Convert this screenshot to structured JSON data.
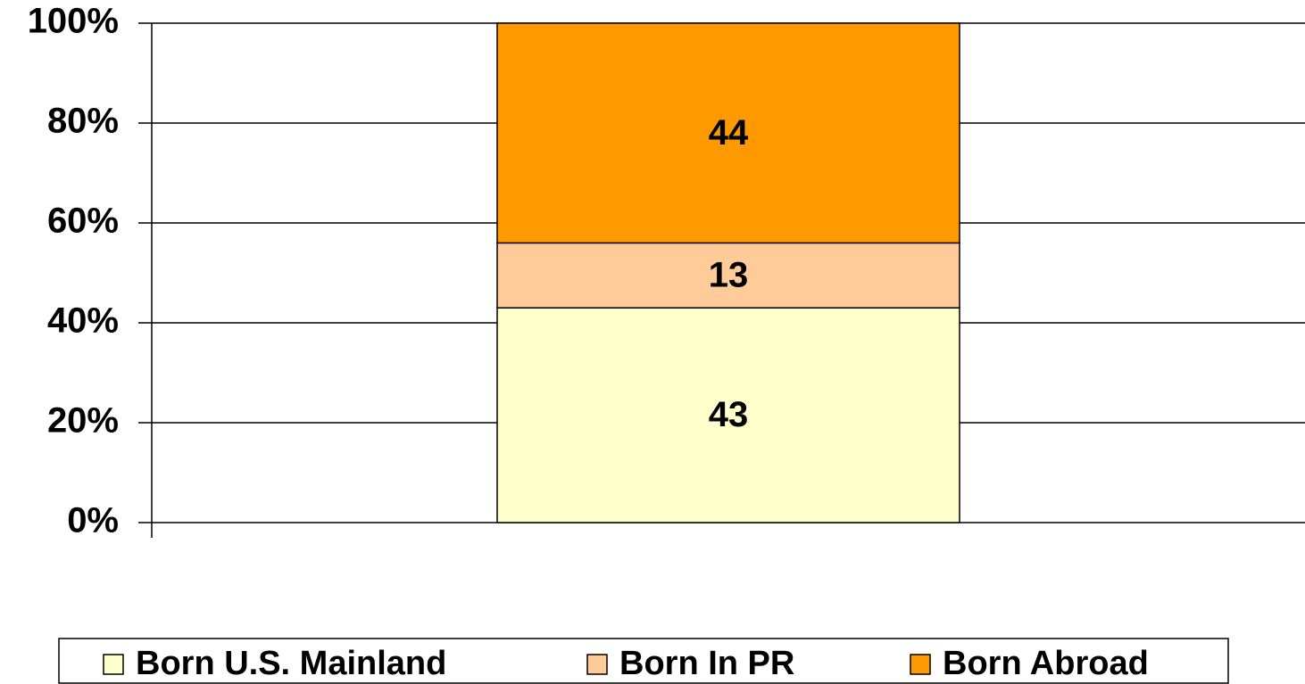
{
  "chart_data": {
    "type": "stacked_bar",
    "categories": [
      null
    ],
    "series": [
      {
        "name": "Born U.S. Mainland",
        "color": "#ffffcc",
        "values": [
          43
        ]
      },
      {
        "name": "Born In PR",
        "color": "#ffcc99",
        "values": [
          13
        ]
      },
      {
        "name": "Born Abroad",
        "color": "#ff9900",
        "values": [
          44
        ]
      }
    ],
    "ylim": [
      0,
      100
    ],
    "yticks": [
      {
        "value": 0,
        "label": "0%"
      },
      {
        "value": 20,
        "label": "20%"
      },
      {
        "value": 40,
        "label": "40%"
      },
      {
        "value": 60,
        "label": "60%"
      },
      {
        "value": 80,
        "label": "80%"
      },
      {
        "value": 100,
        "label": "100%"
      }
    ],
    "grid": true,
    "legend": "bottom"
  }
}
